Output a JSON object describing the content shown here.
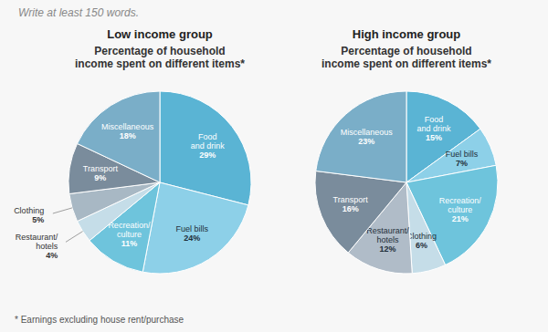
{
  "chart_data": [
    {
      "type": "pie",
      "title": "Percentage of household\nincome spent on different items*",
      "subtitle": "Low income group",
      "categories": [
        "Food\nand drink",
        "Fuel bills",
        "Recreation/\nculture",
        "Restaurant/\nhotels",
        "Clothing",
        "Transport",
        "Miscellaneous"
      ],
      "values": [
        29,
        24,
        11,
        4,
        5,
        9,
        18
      ],
      "value_labels": [
        "29%",
        "24%",
        "11%",
        "4%",
        "5%",
        "9%",
        "18%"
      ],
      "colors": [
        "#5ab4d4",
        "#8dd0e8",
        "#6ec4dc",
        "#c5dde8",
        "#a8b8c4",
        "#7a8c9c",
        "#7aaec8"
      ],
      "data_labels": true,
      "annotations": [
        "Write at least 150 words.",
        "* Earnings excluding house rent/purchase"
      ]
    },
    {
      "type": "pie",
      "title": "Percentage of household\nincome spent on different items*",
      "subtitle": "High income group",
      "categories": [
        "Food\nand drink",
        "Fuel bills",
        "Recreation/\nculture",
        "Clothing",
        "Restaurant/\nhotels",
        "Transport",
        "Miscellaneous"
      ],
      "values": [
        15,
        7,
        21,
        6,
        12,
        16,
        23
      ],
      "value_labels": [
        "15%",
        "7%",
        "21%",
        "6%",
        "12%",
        "16%",
        "23%"
      ],
      "colors": [
        "#5ab4d4",
        "#8dd0e8",
        "#6ec4dc",
        "#c5dde8",
        "#b0bcc8",
        "#7a8c9c",
        "#7aaec8"
      ],
      "data_labels": true
    }
  ]
}
